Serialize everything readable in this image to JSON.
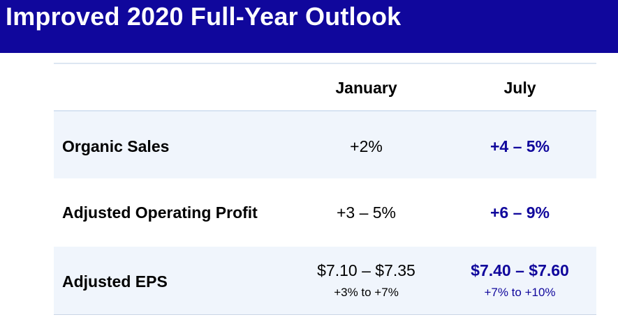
{
  "title": "Improved 2020 Full-Year Outlook",
  "columns": {
    "january": "January",
    "july": "July"
  },
  "rows": [
    {
      "label": "Organic Sales",
      "january": "+2%",
      "july": "+4 – 5%"
    },
    {
      "label": "Adjusted Operating Profit",
      "january": "+3 – 5%",
      "july": "+6 – 9%"
    },
    {
      "label": "Adjusted EPS",
      "january": "$7.10 – $7.35",
      "january_sub": "+3% to +7%",
      "july": "$7.40 – $7.60",
      "july_sub": "+7% to +10%"
    }
  ],
  "colors": {
    "title_bar": "#10079c",
    "title_text": "#ffffff",
    "highlight_value": "#10079c",
    "row_shade": "#f0f5fc"
  }
}
